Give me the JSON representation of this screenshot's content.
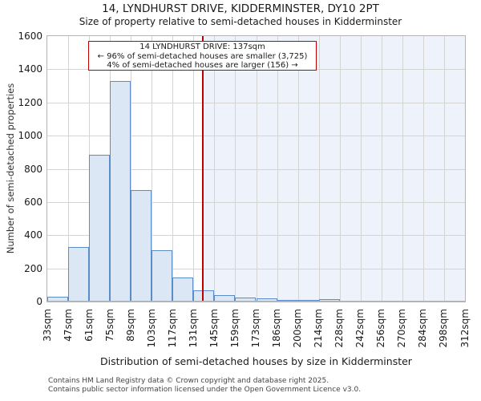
{
  "header": {
    "title_line1": "14, LYNDHURST DRIVE, KIDDERMINSTER, DY10 2PT",
    "title_line2": "Size of property relative to semi-detached houses in Kidderminster"
  },
  "chart_data": {
    "type": "bar",
    "title": "14, LYNDHURST DRIVE, KIDDERMINSTER, DY10 2PT — Size of property relative to semi-detached houses in Kidderminster",
    "xlabel": "Distribution of semi-detached houses by size in Kidderminster",
    "ylabel": "Number of semi-detached properties",
    "ylim": [
      0,
      1600
    ],
    "ytick_step": 200,
    "x_axis_range_sqm": [
      33,
      312
    ],
    "bin_labels": [
      "33sqm",
      "47sqm",
      "61sqm",
      "75sqm",
      "89sqm",
      "103sqm",
      "117sqm",
      "131sqm",
      "145sqm",
      "159sqm",
      "173sqm",
      "186sqm",
      "200sqm",
      "214sqm",
      "228sqm",
      "242sqm",
      "256sqm",
      "270sqm",
      "284sqm",
      "298sqm",
      "312sqm"
    ],
    "values": [
      30,
      330,
      885,
      1330,
      670,
      310,
      145,
      68,
      38,
      24,
      19,
      11,
      8,
      14,
      6,
      5,
      0,
      0,
      0,
      0
    ],
    "marker": {
      "value_sqm": 137,
      "shaded_region": "right-of-marker"
    },
    "grid": true,
    "legend": false
  },
  "annotation": {
    "line1": "14 LYNDHURST DRIVE: 137sqm",
    "line2": "← 96% of semi-detached houses are smaller (3,725)",
    "line3": "4% of semi-detached houses are larger (156) →"
  },
  "footer": {
    "line1": "Contains HM Land Registry data © Crown copyright and database right 2025.",
    "line2": "Contains public sector information licensed under the Open Government Licence v3.0."
  },
  "colors": {
    "bar_fill": "#dce7f5",
    "bar_border": "#5b8cc8",
    "marker_red": "#c00000",
    "shade_fill": "#eef2fa",
    "gridline": "#d4d4d4",
    "spine": "#b4b4b4"
  }
}
